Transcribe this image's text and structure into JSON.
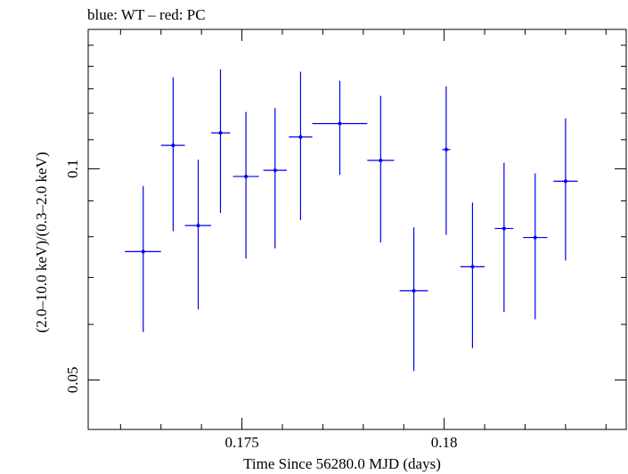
{
  "chart_data": {
    "type": "scatter",
    "title": "blue: WT – red: PC",
    "xlabel": "Time Since 56280.0 MJD (days)",
    "ylabel": "(2.0–10.0 keV)/(0.3–2.0 keV)",
    "xlim": [
      0.1712,
      0.1845
    ],
    "ylim": [
      0.0425,
      0.158
    ],
    "y_scale": "log",
    "x_ticks": [
      {
        "value": 0.175,
        "label": "0.175"
      },
      {
        "value": 0.18,
        "label": "0.18"
      }
    ],
    "y_ticks": [
      {
        "value": 0.05,
        "label": "0.05"
      },
      {
        "value": 0.1,
        "label": "0.1"
      }
    ],
    "series": [
      {
        "color": "#0000ee",
        "points": [
          {
            "x": 0.17256,
            "xlo": 0.17211,
            "xhi": 0.173,
            "y": 0.0762,
            "ylo": 0.0585,
            "yhi": 0.0945
          },
          {
            "x": 0.1733,
            "xlo": 0.173,
            "xhi": 0.17359,
            "y": 0.108,
            "ylo": 0.0815,
            "yhi": 0.135
          },
          {
            "x": 0.17392,
            "xlo": 0.17359,
            "xhi": 0.17424,
            "y": 0.083,
            "ylo": 0.063,
            "yhi": 0.103
          },
          {
            "x": 0.17447,
            "xlo": 0.17424,
            "xhi": 0.17471,
            "y": 0.1125,
            "ylo": 0.0865,
            "yhi": 0.1385
          },
          {
            "x": 0.1751,
            "xlo": 0.17478,
            "xhi": 0.17542,
            "y": 0.0975,
            "ylo": 0.0745,
            "yhi": 0.1205
          },
          {
            "x": 0.17582,
            "xlo": 0.17553,
            "xhi": 0.17611,
            "y": 0.0995,
            "ylo": 0.077,
            "yhi": 0.122
          },
          {
            "x": 0.17645,
            "xlo": 0.17616,
            "xhi": 0.17674,
            "y": 0.111,
            "ylo": 0.0845,
            "yhi": 0.1375
          },
          {
            "x": 0.17742,
            "xlo": 0.17674,
            "xhi": 0.1781,
            "y": 0.116,
            "ylo": 0.098,
            "yhi": 0.1335
          },
          {
            "x": 0.17843,
            "xlo": 0.1781,
            "xhi": 0.17876,
            "y": 0.1028,
            "ylo": 0.0785,
            "yhi": 0.127
          },
          {
            "x": 0.17925,
            "xlo": 0.1789,
            "xhi": 0.1796,
            "y": 0.067,
            "ylo": 0.0515,
            "yhi": 0.0825
          },
          {
            "x": 0.18005,
            "xlo": 0.17995,
            "xhi": 0.18015,
            "y": 0.1065,
            "ylo": 0.0805,
            "yhi": 0.131
          },
          {
            "x": 0.1807,
            "xlo": 0.1804,
            "xhi": 0.181,
            "y": 0.0725,
            "ylo": 0.0555,
            "yhi": 0.0895
          },
          {
            "x": 0.18148,
            "xlo": 0.18125,
            "xhi": 0.18171,
            "y": 0.0822,
            "ylo": 0.0625,
            "yhi": 0.102
          },
          {
            "x": 0.18225,
            "xlo": 0.18195,
            "xhi": 0.18255,
            "y": 0.0798,
            "ylo": 0.061,
            "yhi": 0.0985
          },
          {
            "x": 0.183,
            "xlo": 0.1827,
            "xhi": 0.1833,
            "y": 0.096,
            "ylo": 0.074,
            "yhi": 0.118
          }
        ]
      }
    ]
  }
}
